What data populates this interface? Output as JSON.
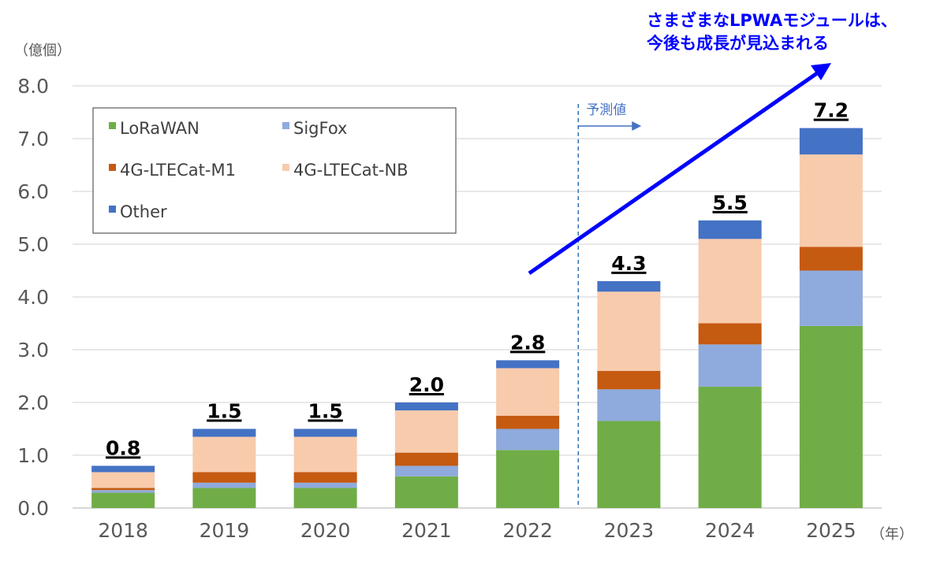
{
  "chart_data": {
    "type": "bar",
    "stacked": true,
    "categories": [
      "2018",
      "2019",
      "2020",
      "2021",
      "2022",
      "2023",
      "2024",
      "2025"
    ],
    "series": [
      {
        "name": "LoRaWAN",
        "color": "#70ad47",
        "values": [
          0.29,
          0.38,
          0.38,
          0.6,
          1.1,
          1.65,
          2.3,
          3.45
        ]
      },
      {
        "name": "SigFox",
        "color": "#8faadc",
        "values": [
          0.05,
          0.1,
          0.1,
          0.2,
          0.4,
          0.6,
          0.8,
          1.05
        ]
      },
      {
        "name": "4G-LTECat-M1",
        "color": "#c55a11",
        "values": [
          0.04,
          0.2,
          0.2,
          0.25,
          0.25,
          0.35,
          0.4,
          0.45
        ]
      },
      {
        "name": "4G-LTECat-NB",
        "color": "#f8cbad",
        "values": [
          0.3,
          0.67,
          0.67,
          0.8,
          0.9,
          1.5,
          1.6,
          1.75
        ]
      },
      {
        "name": "Other",
        "color": "#4472c4",
        "values": [
          0.12,
          0.15,
          0.15,
          0.15,
          0.15,
          0.2,
          0.35,
          0.5
        ]
      }
    ],
    "totals": [
      "0.8",
      "1.5",
      "1.5",
      "2.0",
      "2.8",
      "4.3",
      "5.5",
      "7.2"
    ],
    "y_ticks": [
      "0.0",
      "1.0",
      "2.0",
      "3.0",
      "4.0",
      "5.0",
      "6.0",
      "7.0",
      "8.0"
    ],
    "ylim": [
      0,
      8
    ],
    "ylabel": "（億個）",
    "xlabel": "（年）",
    "grid": true,
    "legend_position": "top-left",
    "forecast": {
      "label": "予測値",
      "start_category": "2023",
      "line_color": "#2e75b6"
    },
    "annotation": {
      "lines": [
        "さまざまなLPWAモジュールは、",
        "今後も成長が見込まれる"
      ],
      "color": "#0000ff"
    }
  }
}
